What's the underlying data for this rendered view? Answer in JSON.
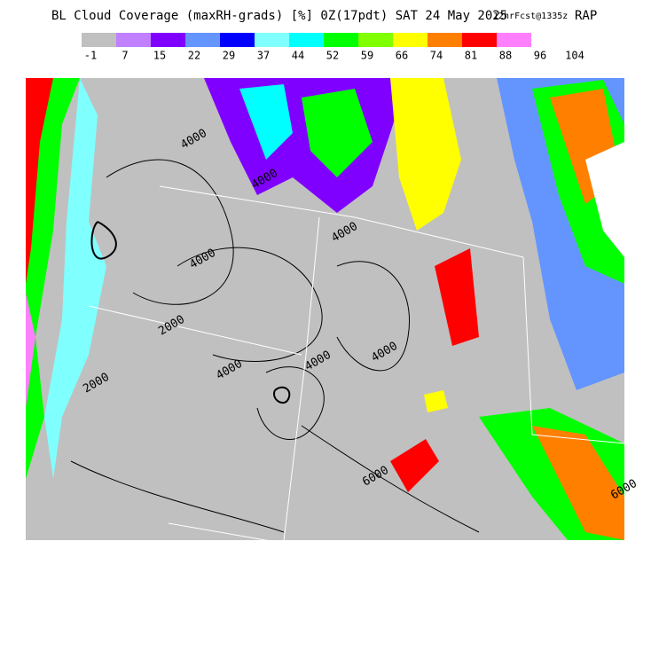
{
  "header": {
    "title": "BL Cloud Coverage (maxRH-grads) [%] 0Z(17pdt) SAT 24 May 2025",
    "forecast": "12hrFcst@1335z",
    "model": "RAP"
  },
  "legend": {
    "colors": [
      "#c0c0c0",
      "#c080ff",
      "#8000ff",
      "#6495ff",
      "#0000ff",
      "#80ffff",
      "#00ffff",
      "#00ff00",
      "#80ff00",
      "#ffff00",
      "#ff8000",
      "#ff0000",
      "#ff80ff"
    ],
    "ticks": [
      -1,
      7,
      15,
      22,
      29,
      37,
      44,
      52,
      59,
      66,
      74,
      81,
      88,
      96,
      104
    ]
  },
  "map": {
    "contour_labels": [
      "4000",
      "4000",
      "4000",
      "2000",
      "2000",
      "4000",
      "4000",
      "4000",
      "4000",
      "6000",
      "6000"
    ]
  }
}
